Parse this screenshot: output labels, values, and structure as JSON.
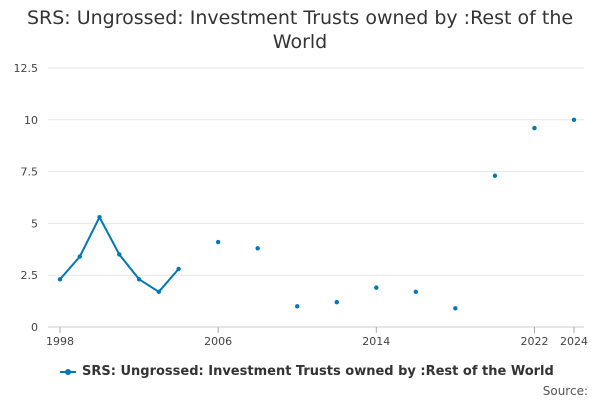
{
  "chart_data": {
    "type": "line",
    "title": "SRS: Ungrossed: Investment Trusts owned by :Rest of the World",
    "xlabel": "",
    "ylabel": "",
    "xlim": [
      1998,
      2024
    ],
    "ylim": [
      0,
      12.5
    ],
    "y_ticks": [
      0,
      2.5,
      5,
      7.5,
      10,
      12.5
    ],
    "y_tick_labels": [
      "0",
      "2.5",
      "5",
      "7.5",
      "10",
      "12.5"
    ],
    "x_ticks": [
      1998,
      2006,
      2014,
      2022,
      2024
    ],
    "x_tick_labels": [
      "1998",
      "2006",
      "2014",
      "2022",
      "2024"
    ],
    "grid": "horizontal",
    "legend_position": "bottom",
    "series": [
      {
        "name": "SRS: Ungrossed: Investment Trusts owned by :Rest of the World",
        "color": "#0077b6",
        "x": [
          1998,
          1999,
          2000,
          2001,
          2002,
          2003,
          2004,
          2006,
          2008,
          2010,
          2012,
          2014,
          2016,
          2018,
          2020,
          2022,
          2024
        ],
        "y": [
          2.3,
          3.4,
          5.3,
          3.5,
          2.3,
          1.7,
          2.8,
          4.1,
          3.8,
          1.0,
          1.2,
          1.9,
          1.7,
          0.9,
          7.3,
          9.6,
          10.0
        ]
      }
    ]
  },
  "source_label": "Source:"
}
